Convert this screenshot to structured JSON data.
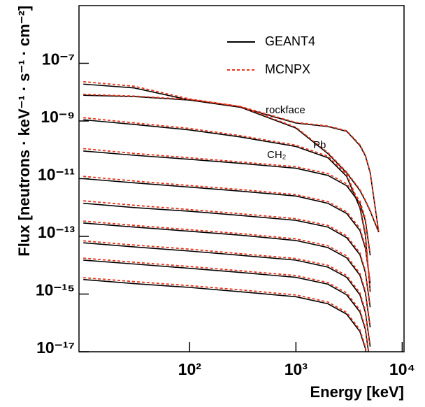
{
  "chart_data": {
    "type": "line",
    "xlabel": "Energy [keV]",
    "ylabel": "Flux [neutrons · keV⁻¹ · s⁻¹ · cm⁻²]",
    "xscale": "log",
    "yscale": "log",
    "xlim": [
      9.1,
      10400
    ],
    "ylim": [
      1e-17,
      1e-05
    ],
    "xticks": [
      {
        "value": 100,
        "label": "10²"
      },
      {
        "value": 1000,
        "label": "10³"
      },
      {
        "value": 10000,
        "label": "10⁴"
      }
    ],
    "yticks": [
      {
        "value": 1e-17,
        "label": "10⁻¹⁷"
      },
      {
        "value": 1e-15,
        "label": "10⁻¹⁵"
      },
      {
        "value": 1e-13,
        "label": "10⁻¹³"
      },
      {
        "value": 1e-11,
        "label": "10⁻¹¹"
      },
      {
        "value": 1e-09,
        "label": "10⁻⁹"
      },
      {
        "value": 1e-07,
        "label": "10⁻⁷"
      }
    ],
    "legend": "upper right",
    "annotations": [
      "rockface",
      "Pb",
      "CH₂"
    ],
    "x": [
      10,
      30,
      100,
      300,
      1000,
      2000,
      3000,
      4000,
      4500,
      5000,
      6000
    ],
    "series": [
      {
        "name": "GEANT4",
        "color": "#000000",
        "dashed": false,
        "curves": [
          [
            7.8e-09,
            7e-09,
            5.3e-09,
            3e-09,
            8.5e-10,
            6.4e-10,
            4.4e-10,
            1.4e-10,
            6.2e-11,
            1.6e-11,
            1.4e-13
          ],
          [
            1.9e-08,
            1.4e-08,
            5.3e-09,
            3e-09,
            5.7e-10,
            7.4e-11,
            1.6e-11,
            3.9e-12,
            1.7e-12,
            7.4e-13,
            1.4e-13
          ],
          [
            1.1e-09,
            7.6e-10,
            4.9e-10,
            2.8e-10,
            1.3e-10,
            5.3e-11,
            1.2e-11,
            9.7e-13,
            1.1e-13,
            1.2e-15,
            null
          ],
          [
            9.1e-11,
            6.5e-11,
            4.7e-11,
            3.4e-11,
            2.3e-11,
            1.3e-11,
            5.7e-12,
            1.4e-12,
            3.5e-13,
            2.2e-14,
            null
          ],
          [
            1e-11,
            7.2e-12,
            5.1e-12,
            3.7e-12,
            2.5e-12,
            1.4e-12,
            6.2e-13,
            1.6e-13,
            3.9e-14,
            2.4e-15,
            null
          ],
          [
            1.4e-12,
            1e-12,
            7.4e-13,
            5.3e-13,
            3.6e-13,
            2.1e-13,
            9e-14,
            2.3e-14,
            5.6e-15,
            3.5e-16,
            null
          ],
          [
            2.9e-13,
            2.1e-13,
            1.5e-13,
            1.1e-13,
            7.2e-14,
            4.1e-14,
            1.8e-14,
            4.5e-15,
            1.1e-15,
            7e-17,
            null
          ],
          [
            6e-14,
            4.3e-14,
            3.1e-14,
            2.2e-14,
            1.5e-14,
            8.6e-15,
            3.8e-15,
            9.4e-16,
            2.3e-16,
            1.5e-17,
            null
          ],
          [
            1.5e-14,
            1.1e-14,
            7.8e-15,
            5.6e-15,
            3.8e-15,
            2.2e-15,
            9.4e-16,
            2.4e-16,
            5.9e-17,
            3.7e-18,
            null
          ],
          [
            3.2e-15,
            2.3e-15,
            1.7e-15,
            1.2e-15,
            8.1e-16,
            4.6e-16,
            2e-16,
            5e-17,
            1.3e-17,
            7.9e-19,
            null
          ]
        ]
      },
      {
        "name": "MCNPX",
        "color": "#e8361c",
        "dashed": true,
        "curves": [
          [
            8.4e-09,
            7.3e-09,
            5.6e-09,
            3.2e-09,
            8.9e-10,
            6.7e-10,
            4.6e-10,
            1.5e-10,
            6.6e-11,
            1.7e-11,
            1.5e-13
          ],
          [
            2.3e-08,
            1.6e-08,
            5.8e-09,
            3.2e-09,
            6.1e-10,
            8e-11,
            1.7e-11,
            4.2e-12,
            1.8e-12,
            7.9e-13,
            1.5e-13
          ],
          [
            1.3e-09,
            8.6e-10,
            5.5e-10,
            3.1e-10,
            1.45e-10,
            6e-11,
            1.4e-11,
            1.2e-12,
            1.3e-13,
            1.4e-15,
            null
          ],
          [
            1.1e-10,
            7.5e-11,
            5.3e-11,
            3.8e-11,
            2.6e-11,
            1.5e-11,
            6.6e-12,
            1.7e-12,
            4.1e-13,
            2.5e-14,
            null
          ],
          [
            1.2e-11,
            8.3e-12,
            5.8e-12,
            4.2e-12,
            2.8e-12,
            1.6e-12,
            7.1e-13,
            1.9e-13,
            4.5e-14,
            2.7e-15,
            null
          ],
          [
            1.7e-12,
            1.2e-12,
            8.5e-13,
            6.1e-13,
            4.1e-13,
            2.4e-13,
            1.04e-13,
            2.7e-14,
            6.5e-15,
            4e-16,
            null
          ],
          [
            3.4e-13,
            2.4e-13,
            1.7e-13,
            1.25e-13,
            8.2e-14,
            4.7e-14,
            2.1e-14,
            5.2e-15,
            1.3e-15,
            8e-17,
            null
          ],
          [
            7e-14,
            5e-14,
            3.6e-14,
            2.5e-14,
            1.7e-14,
            9.9e-15,
            4.4e-15,
            1.1e-15,
            2.7e-16,
            1.7e-17,
            null
          ],
          [
            1.75e-14,
            1.27e-14,
            9e-15,
            6.4e-15,
            4.4e-15,
            2.5e-15,
            1.1e-15,
            2.8e-16,
            6.8e-17,
            4.2e-18,
            null
          ],
          [
            3.7e-15,
            2.7e-15,
            1.95e-15,
            1.4e-15,
            9.3e-16,
            5.3e-16,
            2.3e-16,
            5.8e-17,
            1.5e-17,
            9e-19,
            null
          ]
        ]
      }
    ]
  }
}
